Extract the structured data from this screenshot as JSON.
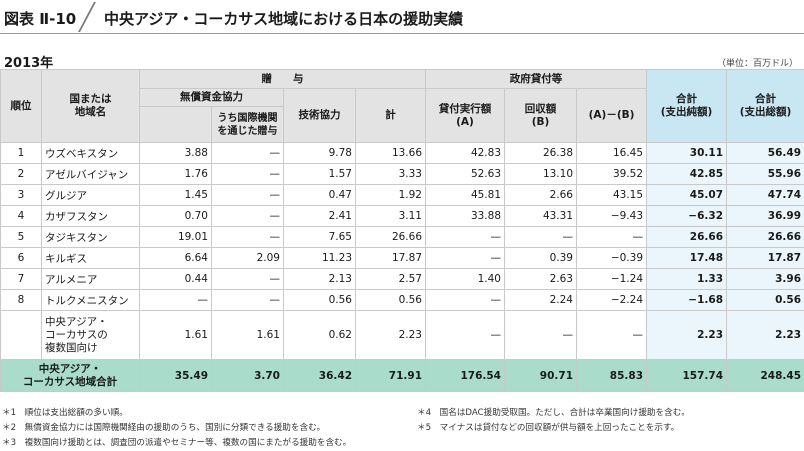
{
  "figure": {
    "label": "図表 Ⅱ-10",
    "title": "中央アジア・コーカサス地域における日本の援助実績",
    "year": "2013年",
    "unit": "（単位：百万ドル）"
  },
  "headers": {
    "rank": "順位",
    "country": "国または\n地域名",
    "grant": "贈　　与",
    "grant_aid": "無償資金協力",
    "intl_org": "うち国際機関\nを通じた贈与",
    "tech": "技術協力",
    "total": "計",
    "loans": "政府貸付等",
    "loan_exec": "貸付実行額\n(A)",
    "recovered": "回収額\n(B)",
    "a_minus_b": "(A)－(B)",
    "net": "合計\n(支出純額)",
    "gross": "合計\n(支出総額)"
  },
  "rows": [
    {
      "rank": "1",
      "country": "ウズベキスタン",
      "grant_aid": "3.88",
      "intl": "—",
      "tech": "9.78",
      "total": "13.66",
      "loan": "42.83",
      "recovered": "26.38",
      "diff": "16.45",
      "net": "30.11",
      "gross": "56.49"
    },
    {
      "rank": "2",
      "country": "アゼルバイジャン",
      "grant_aid": "1.76",
      "intl": "—",
      "tech": "1.57",
      "total": "3.33",
      "loan": "52.63",
      "recovered": "13.10",
      "diff": "39.52",
      "net": "42.85",
      "gross": "55.96"
    },
    {
      "rank": "3",
      "country": "グルジア",
      "grant_aid": "1.45",
      "intl": "—",
      "tech": "0.47",
      "total": "1.92",
      "loan": "45.81",
      "recovered": "2.66",
      "diff": "43.15",
      "net": "45.07",
      "gross": "47.74"
    },
    {
      "rank": "4",
      "country": "カザフスタン",
      "grant_aid": "0.70",
      "intl": "—",
      "tech": "2.41",
      "total": "3.11",
      "loan": "33.88",
      "recovered": "43.31",
      "diff": "−9.43",
      "net": "−6.32",
      "gross": "36.99"
    },
    {
      "rank": "5",
      "country": "タジキスタン",
      "grant_aid": "19.01",
      "intl": "—",
      "tech": "7.65",
      "total": "26.66",
      "loan": "—",
      "recovered": "—",
      "diff": "—",
      "net": "26.66",
      "gross": "26.66"
    },
    {
      "rank": "6",
      "country": "キルギス",
      "grant_aid": "6.64",
      "intl": "2.09",
      "tech": "11.23",
      "total": "17.87",
      "loan": "—",
      "recovered": "0.39",
      "diff": "−0.39",
      "net": "17.48",
      "gross": "17.87"
    },
    {
      "rank": "7",
      "country": "アルメニア",
      "grant_aid": "0.44",
      "intl": "—",
      "tech": "2.13",
      "total": "2.57",
      "loan": "1.40",
      "recovered": "2.63",
      "diff": "−1.24",
      "net": "1.33",
      "gross": "3.96"
    },
    {
      "rank": "8",
      "country": "トルクメニスタン",
      "grant_aid": "—",
      "intl": "—",
      "tech": "0.56",
      "total": "0.56",
      "loan": "—",
      "recovered": "2.24",
      "diff": "−2.24",
      "net": "−1.68",
      "gross": "0.56"
    }
  ],
  "multi_row": {
    "country": "中央アジア・\nコーカサスの\n複数国向け",
    "grant_aid": "1.61",
    "intl": "1.61",
    "tech": "0.62",
    "total": "2.23",
    "loan": "—",
    "recovered": "—",
    "diff": "—",
    "net": "2.23",
    "gross": "2.23"
  },
  "total_row": {
    "label": "中央アジア・\nコーカサス地域合計",
    "grant_aid": "35.49",
    "intl": "3.70",
    "tech": "36.42",
    "total": "71.91",
    "loan": "176.54",
    "recovered": "90.71",
    "diff": "85.83",
    "net": "157.74",
    "gross": "248.45"
  },
  "notes": [
    "＊1　順位は支出総額の多い順。",
    "＊2　無償資金協力には国際機関経由の援助のうち、国別に分類できる援助を含む。",
    "＊3　複数国向け援助とは、調査団の派遣やセミナー等、複数の国にまたがる援助を含む。",
    "＊4　国名はDAC援助受取国。ただし、合計は卒業国向け援助を含む。",
    "＊5　マイナスは貸付などの回収額が供与額を上回ったことを示す。"
  ]
}
